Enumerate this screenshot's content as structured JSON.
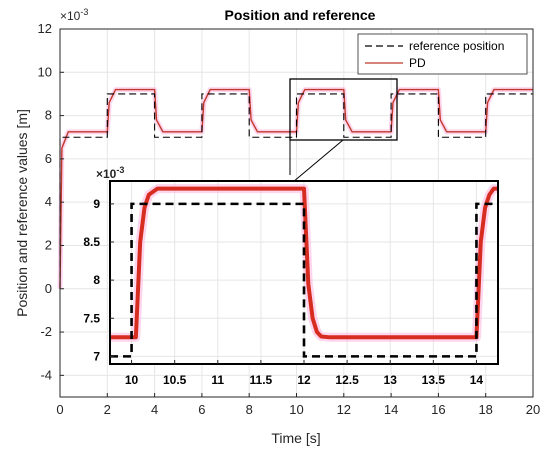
{
  "chart_data": [
    {
      "type": "line",
      "title": "Position and reference",
      "xlabel": "Time [s]",
      "ylabel": "Position and reference values [m]",
      "y_exponent": "×10",
      "y_exponent_power": "-3",
      "xlim": [
        0,
        20
      ],
      "ylim": [
        -5,
        12
      ],
      "x_ticks": [
        "0",
        "2",
        "4",
        "6",
        "8",
        "10",
        "12",
        "14",
        "16",
        "18",
        "20"
      ],
      "y_ticks": [
        "-4",
        "-2",
        "0",
        "2",
        "4",
        "6",
        "8",
        "10",
        "12"
      ],
      "grid": true,
      "legend_position": "top-right",
      "series": [
        {
          "name": "reference position",
          "style": "dashed",
          "color": "#000000",
          "x": [
            0,
            0,
            2,
            2,
            4,
            4,
            6,
            6,
            8,
            8,
            10,
            10,
            12,
            12,
            14,
            14,
            16,
            16,
            18,
            18,
            20
          ],
          "y": [
            0,
            7,
            7,
            9,
            9,
            7,
            7,
            9,
            9,
            7,
            7,
            9,
            9,
            7,
            7,
            9,
            9,
            7,
            7,
            9,
            9
          ]
        },
        {
          "name": "PD",
          "style": "solid",
          "color": "#c0392b",
          "x": [
            0,
            0.08,
            0.35,
            2,
            2.08,
            2.35,
            4,
            4.08,
            4.35,
            6,
            6.08,
            6.35,
            8,
            8.08,
            8.35,
            10,
            10.08,
            10.35,
            12,
            12.08,
            12.35,
            14,
            14.08,
            14.35,
            16,
            16.08,
            16.35,
            18,
            18.08,
            18.35,
            20
          ],
          "y": [
            0,
            6.5,
            7.25,
            7.25,
            8.6,
            9.2,
            9.2,
            7.8,
            7.25,
            7.25,
            8.6,
            9.2,
            9.2,
            7.8,
            7.25,
            7.25,
            8.6,
            9.2,
            9.2,
            7.8,
            7.25,
            7.25,
            8.6,
            9.2,
            9.2,
            7.8,
            7.25,
            7.25,
            8.6,
            9.2,
            9.2
          ]
        }
      ]
    },
    {
      "type": "line",
      "title": "",
      "y_exponent": "×10",
      "y_exponent_power": "-3",
      "xlim": [
        9.75,
        14.25
      ],
      "ylim": [
        6.9,
        9.3
      ],
      "x_ticks": [
        "10",
        "10.5",
        "11",
        "11.5",
        "12",
        "12.5",
        "13",
        "13.5",
        "14"
      ],
      "y_ticks": [
        "7",
        "7.5",
        "8",
        "8.5",
        "9"
      ],
      "grid": true,
      "series": [
        {
          "name": "reference position",
          "style": "dashed",
          "color": "#000000",
          "x": [
            9.75,
            10,
            10,
            12,
            12,
            14,
            14,
            14.25
          ],
          "y": [
            7,
            7,
            9,
            9,
            7,
            7,
            9,
            9
          ]
        },
        {
          "name": "PD",
          "style": "solid",
          "color": "#d62d20",
          "x": [
            9.75,
            10.05,
            10.1,
            10.15,
            10.2,
            10.3,
            10.45,
            12,
            12.05,
            12.1,
            12.15,
            12.2,
            12.3,
            12.45,
            14,
            14.05,
            14.1,
            14.15,
            14.2,
            14.25
          ],
          "y": [
            7.25,
            7.25,
            8.5,
            8.95,
            9.12,
            9.2,
            9.2,
            9.2,
            7.95,
            7.5,
            7.32,
            7.26,
            7.25,
            7.25,
            7.25,
            8.5,
            8.95,
            9.12,
            9.2,
            9.2
          ]
        }
      ]
    }
  ]
}
